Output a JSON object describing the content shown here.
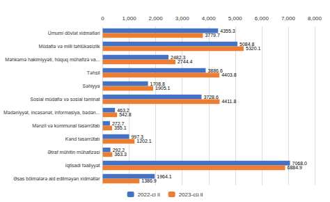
{
  "chart_data": {
    "type": "bar",
    "orientation": "horizontal",
    "categories": [
      "Ümumi dövlət xidmətləri",
      "Müdafiə və milli təhlükəsizlik",
      "Məhkəmə hakimiyyəti, hüquq mühafizə va...",
      "Təhsil",
      "Səhiyyə",
      "Sosial müdafiə və sosial təminat",
      "Mədəniyyət, incəsənət, informasiya, bədən...",
      "Mənzil və kommunal təsərrüfatı",
      "Kənd təsərrüfatı",
      "Ətraf mühitin mühafizəsi",
      "İqtisadi fəaliyyət",
      "Əsas bölmələrə aid edilməyən xidmətlər"
    ],
    "series": [
      {
        "name": "2022-ci il",
        "color": "#4472C4",
        "values": [
          4355.3,
          5084.8,
          2482.3,
          3886.6,
          1708.8,
          3728.6,
          463.2,
          272.7,
          997.3,
          292.2,
          7068.0,
          1964.1
        ],
        "value_labels": [
          "4355.3",
          "5084.8",
          "2482.3",
          "3886.6",
          "1708.8",
          "3728.6",
          "463.2",
          "272.7",
          "997.3",
          "292.2",
          "7068.0",
          "1964.1"
        ]
      },
      {
        "name": "2023-cü il",
        "color": "#ED7D31",
        "values": [
          3779.7,
          5320.1,
          2744.4,
          4403.8,
          1905.1,
          4411.8,
          542.8,
          355.1,
          1202.1,
          363.3,
          6884.9,
          1386.9
        ],
        "value_labels": [
          "3779.7",
          "5320.1",
          "2744.4",
          "4403.8",
          "1905.1",
          "4411.8",
          "542.8",
          "355.1",
          "1202.1",
          "363.3",
          "6884.9",
          "1386.9"
        ]
      }
    ],
    "xlim": [
      0,
      8000
    ],
    "xticks": [
      0,
      1000,
      2000,
      3000,
      4000,
      5000,
      6000,
      7000,
      8000
    ],
    "grid": true,
    "legend": "bottom",
    "data_labels": true
  }
}
